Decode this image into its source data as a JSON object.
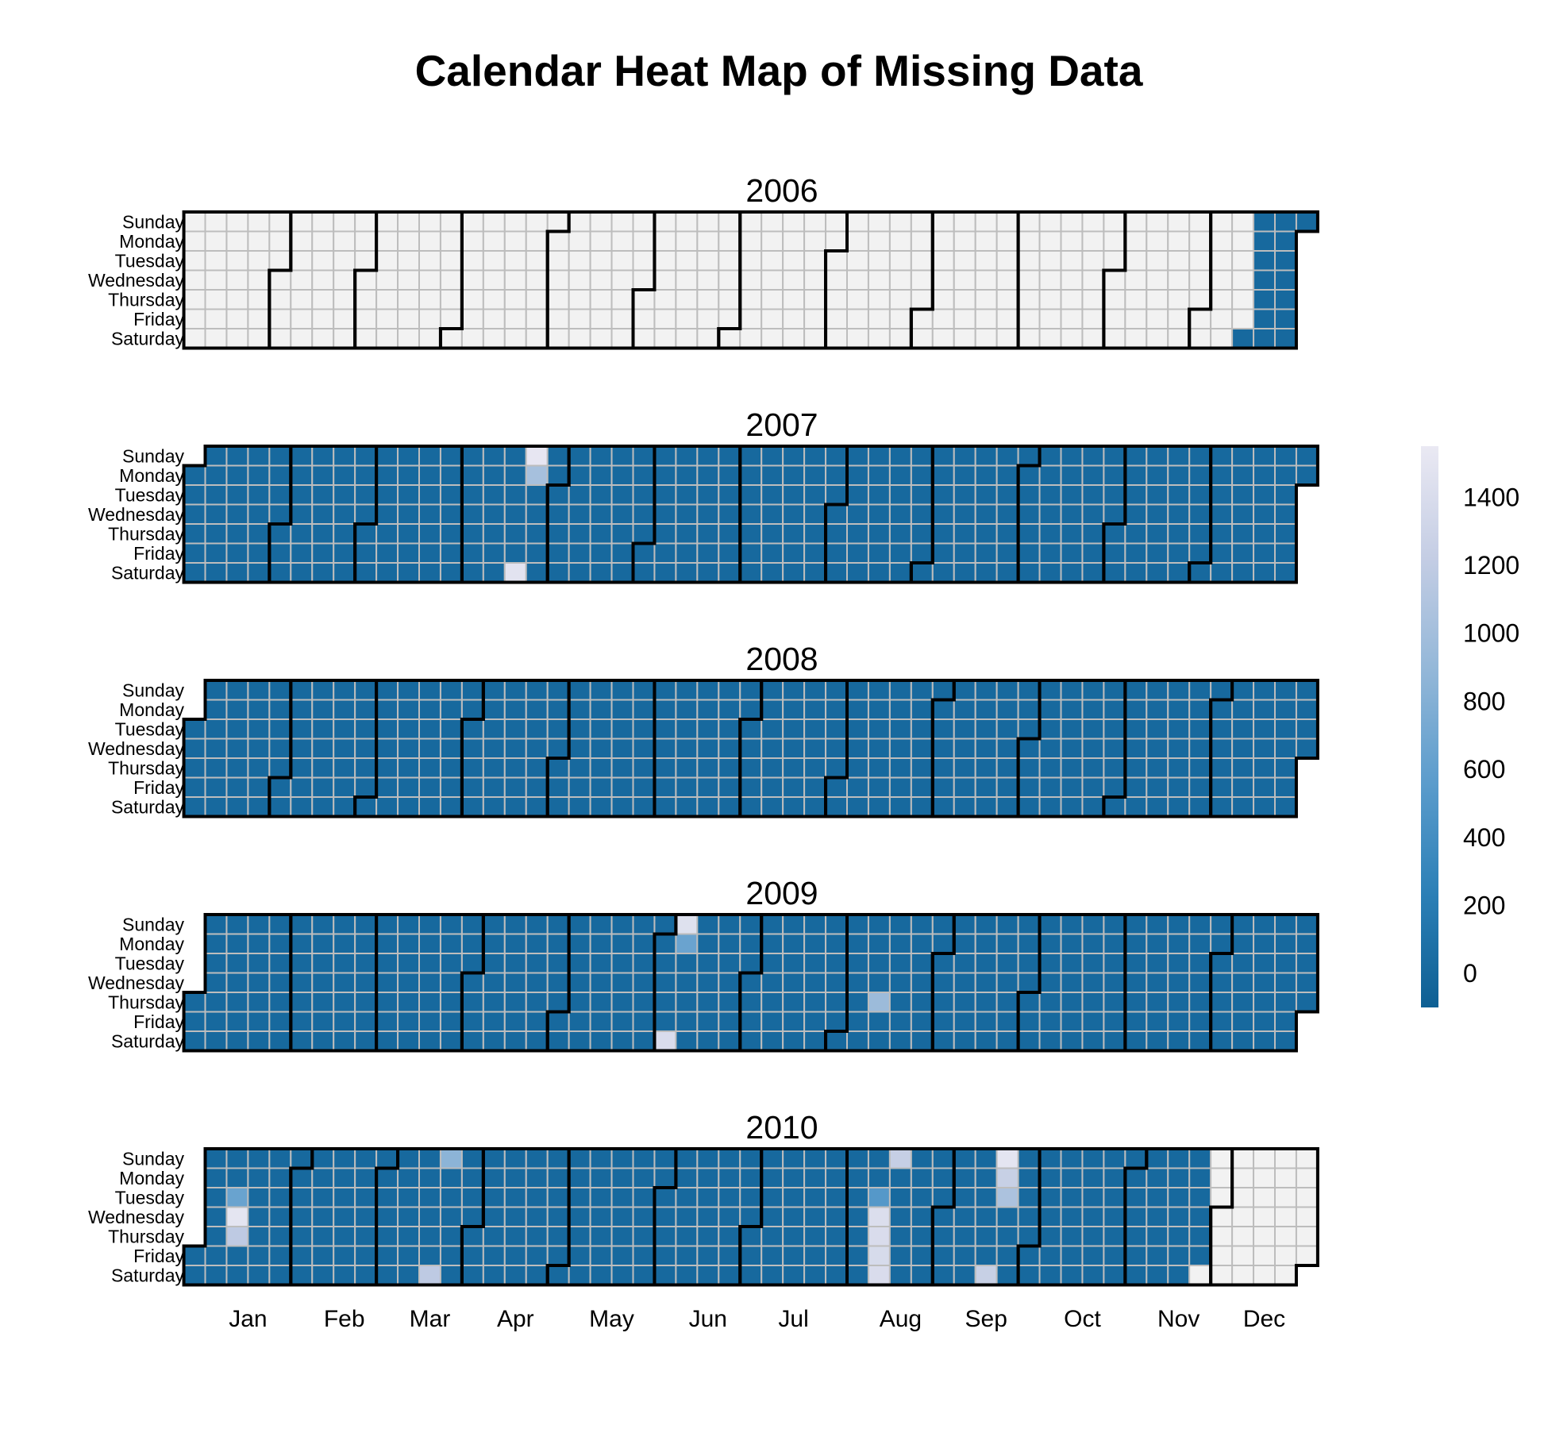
{
  "chart_data": {
    "type": "heatmap",
    "title": "Calendar Heat Map of Missing Data",
    "years": [
      "2006",
      "2007",
      "2008",
      "2009",
      "2010"
    ],
    "weekday_labels": [
      "Sunday",
      "Monday",
      "Tuesday",
      "Wednesday",
      "Thursday",
      "Friday",
      "Saturday"
    ],
    "month_labels": [
      "Jan",
      "Feb",
      "Mar",
      "Apr",
      "May",
      "Jun",
      "Jul",
      "Aug",
      "Sep",
      "Oct",
      "Nov",
      "Dec"
    ],
    "data_range": {
      "first": "2006-12-16",
      "last": "2010-11-26"
    },
    "baseline_value": 0,
    "no_data_color": "#f2f2f2",
    "color_scale": {
      "domain": [
        -100,
        1550
      ],
      "colors": [
        "#0e5f93",
        "#2b7fb6",
        "#5b9ccc",
        "#93b7d8",
        "#c4cde4",
        "#eae9f3"
      ],
      "ticks": [
        0,
        200,
        400,
        600,
        800,
        1000,
        1200,
        1400
      ]
    },
    "values": [
      {
        "date": "2007-04-22",
        "value": 1520
      },
      {
        "date": "2007-04-23",
        "value": 1020
      },
      {
        "date": "2007-04-21",
        "value": 1480
      },
      {
        "date": "2009-06-07",
        "value": 1450
      },
      {
        "date": "2009-06-08",
        "value": 650
      },
      {
        "date": "2009-06-06",
        "value": 1400
      },
      {
        "date": "2009-08-13",
        "value": 950
      },
      {
        "date": "2010-01-12",
        "value": 640
      },
      {
        "date": "2010-01-13",
        "value": 1500
      },
      {
        "date": "2010-01-14",
        "value": 1180
      },
      {
        "date": "2010-03-21",
        "value": 850
      },
      {
        "date": "2010-03-20",
        "value": 1180
      },
      {
        "date": "2010-08-11",
        "value": 1420
      },
      {
        "date": "2010-08-12",
        "value": 1400
      },
      {
        "date": "2010-08-13",
        "value": 1380
      },
      {
        "date": "2010-08-14",
        "value": 1400
      },
      {
        "date": "2010-08-15",
        "value": 1240
      },
      {
        "date": "2010-08-10",
        "value": 520
      },
      {
        "date": "2010-09-19",
        "value": 1500
      },
      {
        "date": "2010-09-20",
        "value": 1250
      },
      {
        "date": "2010-09-21",
        "value": 1060
      },
      {
        "date": "2010-09-18",
        "value": 1250
      }
    ]
  }
}
